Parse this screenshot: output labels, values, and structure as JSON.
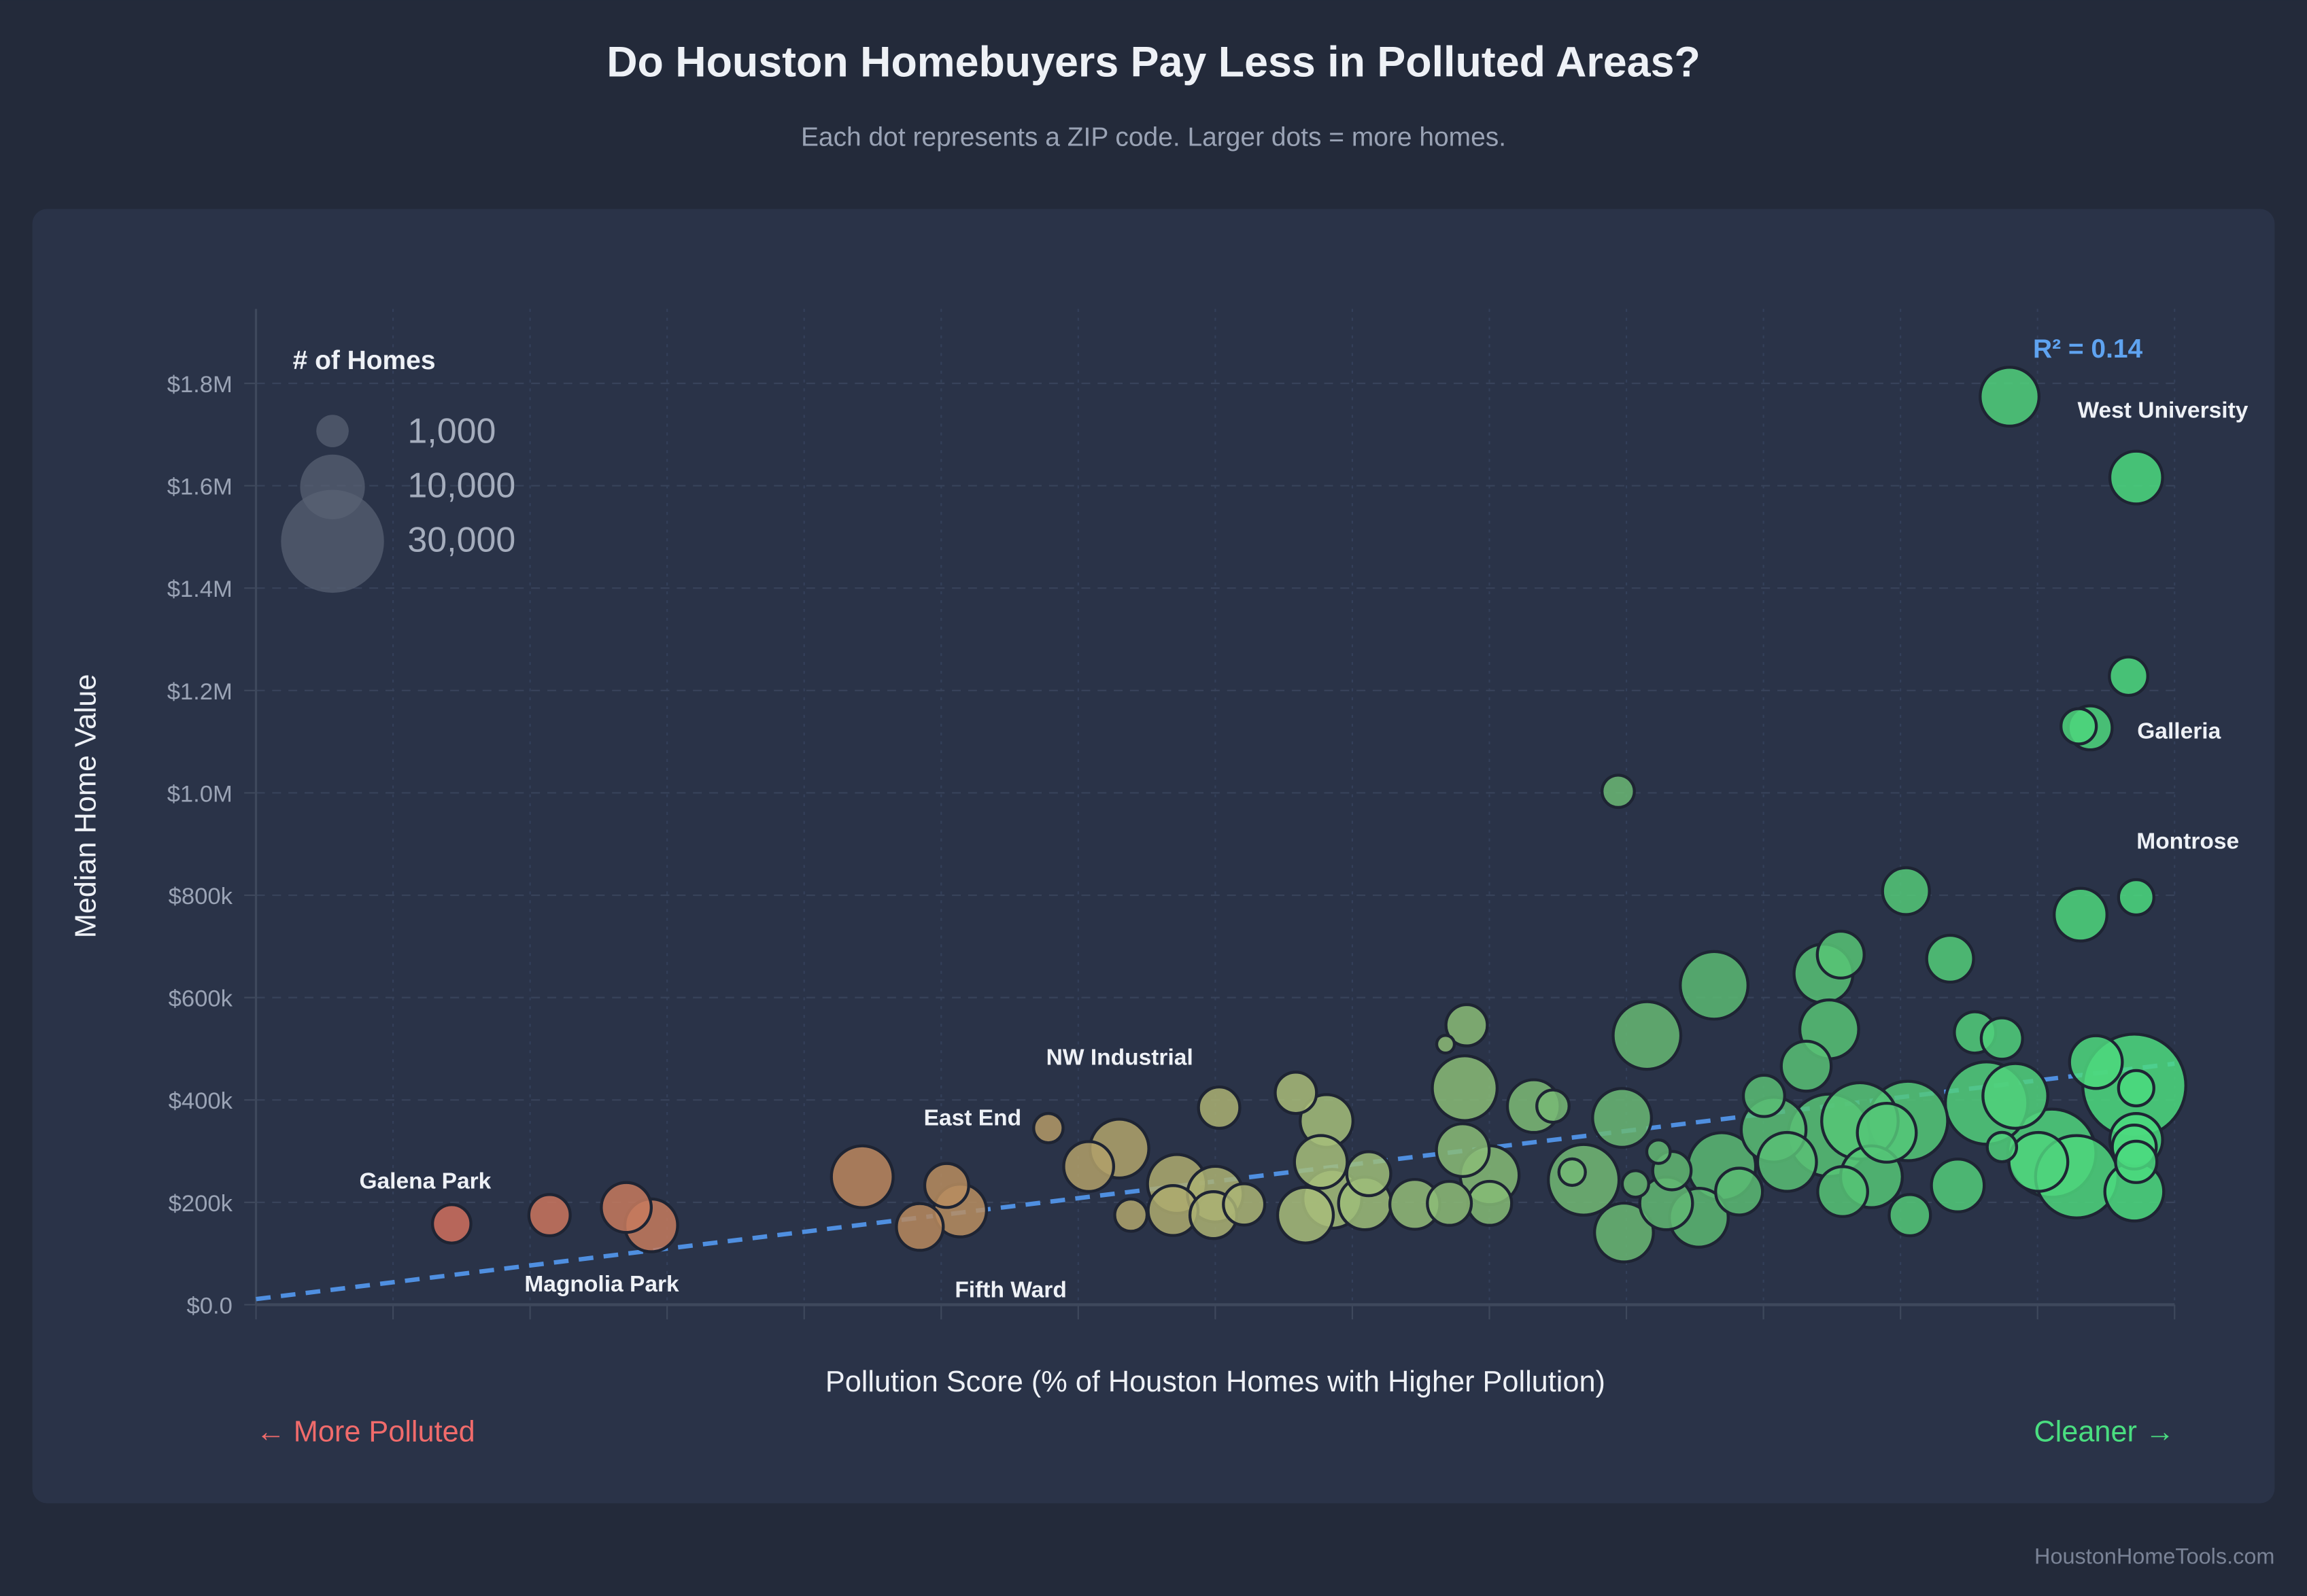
{
  "header": {
    "title": "Do Houston Homebuyers Pay Less in Polluted Areas?",
    "subtitle": "Each dot represents a ZIP code. Larger dots = more homes."
  },
  "legend": {
    "title": "# of Homes",
    "items": [
      "1,000",
      "10,000",
      "30,000"
    ],
    "values": [
      1000,
      10000,
      30000
    ]
  },
  "annotations": {
    "r_squared": "R² = 0.14",
    "labels": [
      "Galena Park",
      "Magnolia Park",
      "Fifth Ward",
      "East End",
      "NW Industrial",
      "West University",
      "Galleria",
      "Montrose"
    ],
    "more_polluted": "← More Polluted",
    "cleaner": "Cleaner →"
  },
  "footer": {
    "credit": "HoustonHomeTools.com"
  },
  "colors": {
    "polluted": "#d9665e",
    "mid": "#b98a5e",
    "clean": "#4ade80",
    "trend": "#4f8fe0"
  },
  "chart_data": {
    "type": "scatter",
    "title": "Do Houston Homebuyers Pay Less in Polluted Areas?",
    "xlabel": "Pollution Score (% of Houston Homes with Higher Pollution)",
    "ylabel": "Median Home Value",
    "xlim": [
      0,
      100
    ],
    "ylim": [
      0,
      1950000
    ],
    "yticks": [
      0,
      200000,
      400000,
      600000,
      800000,
      1000000,
      1200000,
      1400000,
      1600000,
      1800000
    ],
    "ytick_labels": [
      "$0.0",
      "$200k",
      "$400k",
      "$600k",
      "$800k",
      "$1.0M",
      "$1.2M",
      "$1.4M",
      "$1.6M",
      "$1.8M"
    ],
    "grid": true,
    "trendline": {
      "x": [
        0,
        100
      ],
      "y": [
        11000,
        471000
      ],
      "r2": 0.14
    },
    "points": [
      [
        10.2,
        158000,
        1900
      ],
      [
        15.3,
        175000,
        2400
      ],
      [
        19.3,
        190000,
        4200
      ],
      [
        20.6,
        155000,
        4900
      ],
      [
        31.6,
        250000,
        7500
      ],
      [
        36.0,
        233000,
        2900
      ],
      [
        34.6,
        152000,
        3500
      ],
      [
        36.7,
        184000,
        4900
      ],
      [
        41.3,
        345000,
        730
      ],
      [
        43.4,
        270000,
        4200
      ],
      [
        45.0,
        305000,
        6600
      ],
      [
        45.6,
        175000,
        1050
      ],
      [
        48.0,
        236000,
        6600
      ],
      [
        47.8,
        184000,
        4200
      ],
      [
        49.9,
        175000,
        3500
      ],
      [
        50.0,
        216000,
        5700
      ],
      [
        51.5,
        196000,
        2400
      ],
      [
        50.2,
        385000,
        2400
      ],
      [
        54.2,
        414000,
        2400
      ],
      [
        55.8,
        359000,
        4900
      ],
      [
        54.7,
        175000,
        5700
      ],
      [
        55.5,
        279000,
        4900
      ],
      [
        56.1,
        207000,
        6600
      ],
      [
        57.8,
        198000,
        4900
      ],
      [
        58.0,
        256000,
        2900
      ],
      [
        60.4,
        196000,
        4200
      ],
      [
        62.0,
        509000,
        30
      ],
      [
        63.1,
        546000,
        2400
      ],
      [
        63.0,
        423000,
        8500
      ],
      [
        62.9,
        302000,
        4900
      ],
      [
        64.3,
        253000,
        6600
      ],
      [
        64.3,
        198000,
        2900
      ],
      [
        62.2,
        198000,
        2900
      ],
      [
        66.6,
        388000,
        4900
      ],
      [
        67.6,
        388000,
        1050
      ],
      [
        69.2,
        244000,
        10600
      ],
      [
        68.6,
        259000,
        470
      ],
      [
        71.0,
        1003000,
        1050
      ],
      [
        71.2,
        365000,
        6600
      ],
      [
        71.3,
        141000,
        6600
      ],
      [
        71.9,
        236000,
        470
      ],
      [
        72.5,
        526000,
        9500
      ],
      [
        73.1,
        299000,
        260
      ],
      [
        73.5,
        198000,
        4900
      ],
      [
        73.8,
        262000,
        1900
      ],
      [
        75.2,
        170000,
        6600
      ],
      [
        76.0,
        624000,
        9500
      ],
      [
        76.4,
        270000,
        9500
      ],
      [
        77.3,
        221000,
        3500
      ],
      [
        78.6,
        408000,
        2400
      ],
      [
        79.1,
        342000,
        8500
      ],
      [
        79.8,
        279000,
        6600
      ],
      [
        80.8,
        466000,
        4200
      ],
      [
        81.7,
        647000,
        6600
      ],
      [
        82.0,
        538000,
        6600
      ],
      [
        82.6,
        684000,
        3500
      ],
      [
        82.7,
        221000,
        4200
      ],
      [
        82.0,
        331000,
        15500
      ],
      [
        83.6,
        359000,
        12900
      ],
      [
        84.2,
        250000,
        7500
      ],
      [
        85.0,
        336000,
        6600
      ],
      [
        86.0,
        808000,
        3500
      ],
      [
        86.2,
        175000,
        2400
      ],
      [
        86.1,
        359000,
        14200
      ],
      [
        88.3,
        676000,
        3500
      ],
      [
        88.7,
        233000,
        4900
      ],
      [
        89.6,
        532000,
        2400
      ],
      [
        91.0,
        520000,
        2400
      ],
      [
        90.2,
        394000,
        15500
      ],
      [
        91.0,
        308000,
        730
      ],
      [
        91.7,
        408000,
        8500
      ],
      [
        91.4,
        1774000,
        6600
      ],
      [
        92.9,
        279000,
        6600
      ],
      [
        93.6,
        296000,
        18300
      ],
      [
        94.9,
        250000,
        15500
      ],
      [
        95.1,
        762000,
        4900
      ],
      [
        95.9,
        474000,
        4900
      ],
      [
        97.6,
        1228000,
        1900
      ],
      [
        95.0,
        1130000,
        1440
      ],
      [
        95.6,
        1127000,
        2900
      ],
      [
        98.0,
        1616000,
        4900
      ],
      [
        98.0,
        796000,
        1440
      ],
      [
        97.9,
        428000,
        26400
      ],
      [
        98.0,
        423000,
        1440
      ],
      [
        98.0,
        322000,
        4900
      ],
      [
        98.0,
        279000,
        2400
      ],
      [
        97.9,
        221000,
        6600
      ],
      [
        97.9,
        308000,
        2900
      ]
    ]
  }
}
